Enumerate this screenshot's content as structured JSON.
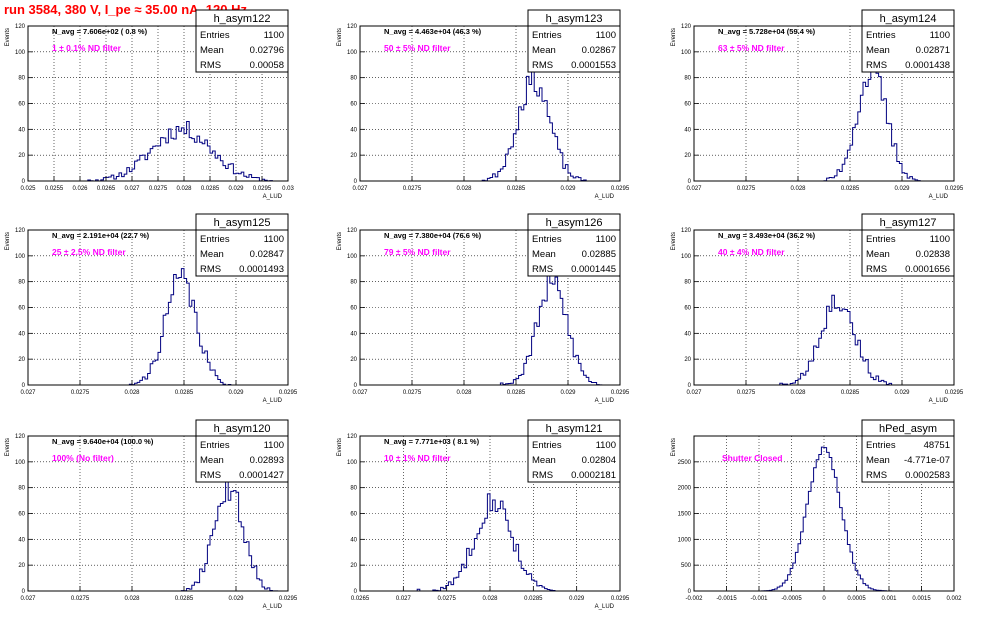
{
  "header": {
    "run_title": "run 3584,   380 V, I_pe ≈ 35.00 nA, 120 Hz"
  },
  "colors": {
    "hist": "#000080",
    "annotation": "#ff00ff",
    "title": "#ff0000",
    "frame": "#000000"
  },
  "chart_data": [
    {
      "type": "bar",
      "name": "h_asym122",
      "navg": "N_avg = 7.606e+02 ( 0.8 %)",
      "filter": "1 ± 0.1% ND filter",
      "entries": "1100",
      "mean": "0.02796",
      "rms": "0.00058",
      "ylabel": "Events",
      "xlabel": "A_LUD",
      "xlim": [
        0.025,
        0.03
      ],
      "ylim": [
        0,
        120
      ],
      "xticks": [
        "0.025",
        "0.0255",
        "0.026",
        "0.0265",
        "0.027",
        "0.0275",
        "0.028",
        "0.0285",
        "0.029",
        "0.0295",
        "0.03"
      ],
      "yticks": [
        "0",
        "20",
        "40",
        "60",
        "80",
        "100",
        "120"
      ],
      "shape": {
        "mu": 0.02796,
        "sigma": 0.00058,
        "peak": 40,
        "seed": 11,
        "bins": 100
      }
    },
    {
      "type": "bar",
      "name": "h_asym123",
      "navg": "N_avg = 4.463e+04 (46.3 %)",
      "filter": "50 ± 5% ND filter",
      "entries": "1100",
      "mean": "0.02867",
      "rms": "0.0001553",
      "ylabel": "Events",
      "xlabel": "A_LUD",
      "xlim": [
        0.027,
        0.0295
      ],
      "ylim": [
        0,
        120
      ],
      "xticks": [
        "0.027",
        "0.0275",
        "0.028",
        "0.0285",
        "0.029",
        "0.0295"
      ],
      "yticks": [
        "0",
        "20",
        "40",
        "60",
        "80",
        "100",
        "120"
      ],
      "shape": {
        "mu": 0.02867,
        "sigma": 0.000155,
        "peak": 78,
        "seed": 23,
        "bins": 100
      }
    },
    {
      "type": "bar",
      "name": "h_asym124",
      "navg": "N_avg = 5.728e+04 (59.4 %)",
      "filter": "63 ± 5% ND filter",
      "entries": "1100",
      "mean": "0.02871",
      "rms": "0.0001438",
      "ylabel": "Events",
      "xlabel": "A_LUD",
      "xlim": [
        0.027,
        0.0295
      ],
      "ylim": [
        0,
        120
      ],
      "xticks": [
        "0.027",
        "0.0275",
        "0.028",
        "0.0285",
        "0.029",
        "0.0295"
      ],
      "yticks": [
        "0",
        "20",
        "40",
        "60",
        "80",
        "100",
        "120"
      ],
      "shape": {
        "mu": 0.02871,
        "sigma": 0.000144,
        "peak": 84,
        "seed": 37,
        "bins": 100
      }
    },
    {
      "type": "bar",
      "name": "h_asym125",
      "navg": "N_avg = 2.191e+04 (22.7 %)",
      "filter": "25 ± 2.5% ND filter",
      "entries": "1100",
      "mean": "0.02847",
      "rms": "0.0001493",
      "ylabel": "Events",
      "xlabel": "A_LUD",
      "xlim": [
        0.027,
        0.0295
      ],
      "ylim": [
        0,
        120
      ],
      "xticks": [
        "0.027",
        "0.0275",
        "0.028",
        "0.0285",
        "0.029",
        "0.0295"
      ],
      "yticks": [
        "0",
        "20",
        "40",
        "60",
        "80",
        "100",
        "120"
      ],
      "shape": {
        "mu": 0.02847,
        "sigma": 0.000149,
        "peak": 82,
        "seed": 41,
        "bins": 100
      }
    },
    {
      "type": "bar",
      "name": "h_asym126",
      "navg": "N_avg = 7.380e+04 (76.6 %)",
      "filter": "79 ± 5% ND filter",
      "entries": "1100",
      "mean": "0.02885",
      "rms": "0.0001445",
      "ylabel": "Events",
      "xlabel": "A_LUD",
      "xlim": [
        0.027,
        0.0295
      ],
      "ylim": [
        0,
        120
      ],
      "xticks": [
        "0.027",
        "0.0275",
        "0.028",
        "0.0285",
        "0.029",
        "0.0295"
      ],
      "yticks": [
        "0",
        "20",
        "40",
        "60",
        "80",
        "100",
        "120"
      ],
      "shape": {
        "mu": 0.02885,
        "sigma": 0.000145,
        "peak": 78,
        "seed": 53,
        "bins": 100
      }
    },
    {
      "type": "bar",
      "name": "h_asym127",
      "navg": "N_avg = 3.493e+04 (36.2 %)",
      "filter": "40 ± 4% ND filter",
      "entries": "1100",
      "mean": "0.02838",
      "rms": "0.0001656",
      "ylabel": "Events",
      "xlabel": "A_LUD",
      "xlim": [
        0.027,
        0.0295
      ],
      "ylim": [
        0,
        120
      ],
      "xticks": [
        "0.027",
        "0.0275",
        "0.028",
        "0.0285",
        "0.029",
        "0.0295"
      ],
      "yticks": [
        "0",
        "20",
        "40",
        "60",
        "80",
        "100",
        "120"
      ],
      "shape": {
        "mu": 0.02838,
        "sigma": 0.000166,
        "peak": 66,
        "seed": 67,
        "bins": 100
      }
    },
    {
      "type": "bar",
      "name": "h_asym120",
      "navg": "N_avg = 9.640e+04 (100.0 %)",
      "filter": "100% (No filter)",
      "entries": "1100",
      "mean": "0.02893",
      "rms": "0.0001427",
      "ylabel": "Events",
      "xlabel": "A_LUD",
      "xlim": [
        0.027,
        0.0295
      ],
      "ylim": [
        0,
        120
      ],
      "xticks": [
        "0.027",
        "0.0275",
        "0.028",
        "0.0285",
        "0.029",
        "0.0295"
      ],
      "yticks": [
        "0",
        "20",
        "40",
        "60",
        "80",
        "100",
        "120"
      ],
      "shape": {
        "mu": 0.02893,
        "sigma": 0.000143,
        "peak": 80,
        "seed": 71,
        "bins": 100
      }
    },
    {
      "type": "bar",
      "name": "h_asym121",
      "navg": "N_avg = 7.771e+03 ( 8.1 %)",
      "filter": "10 ± 1% ND filter",
      "entries": "1100",
      "mean": "0.02804",
      "rms": "0.0002181",
      "ylabel": "Events",
      "xlabel": "A_LUD",
      "xlim": [
        0.0265,
        0.0295
      ],
      "ylim": [
        0,
        120
      ],
      "xticks": [
        "0.0265",
        "0.027",
        "0.0275",
        "0.028",
        "0.0285",
        "0.029",
        "0.0295"
      ],
      "yticks": [
        "0",
        "20",
        "40",
        "60",
        "80",
        "100",
        "120"
      ],
      "shape": {
        "mu": 0.02804,
        "sigma": 0.000218,
        "peak": 70,
        "seed": 83,
        "bins": 100
      }
    },
    {
      "type": "bar",
      "name": "hPed_asym",
      "navg": "",
      "filter": "Shutter Closed",
      "entries": "48751",
      "mean": "-4.771e-07",
      "rms": "0.0002583",
      "ylabel": "Events",
      "xlabel": "",
      "xlim": [
        -0.002,
        0.002
      ],
      "ylim": [
        0,
        3000
      ],
      "xticks": [
        "-0.002",
        "-0.0015",
        "-0.001",
        "-0.0005",
        "0",
        "0.0005",
        "0.001",
        "0.0015",
        "0.002"
      ],
      "yticks": [
        "0",
        "500",
        "1000",
        "1500",
        "2000",
        "2500"
      ],
      "shape": {
        "mu": 0.0,
        "sigma": 0.000258,
        "peak": 2750,
        "seed": 97,
        "bins": 100
      }
    }
  ]
}
